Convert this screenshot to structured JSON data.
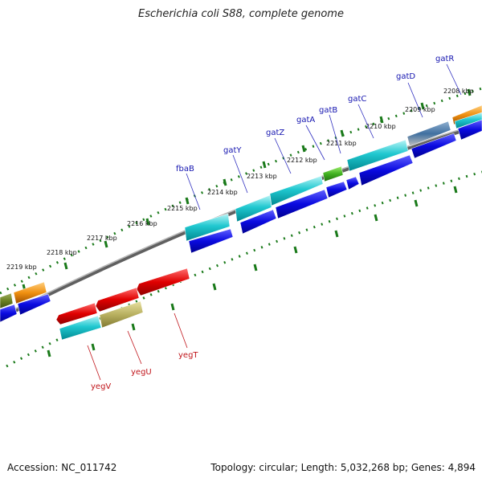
{
  "title": "Escherichia coli S88, complete genome",
  "footer": {
    "accession": "Accession: NC_011742",
    "summary": "Topology: circular; Length: 5,032,268 bp; Genes: 4,894"
  },
  "kbp_labels": [
    "2208 kbp",
    "2209 kbp",
    "2210 kbp",
    "2211 kbp",
    "2212 kbp",
    "2213 kbp",
    "2214 kbp",
    "2215 kbp",
    "2216 kbp",
    "2217 kbp",
    "2218 kbp",
    "2219 kbp"
  ],
  "genes_top": [
    "gatR",
    "gatD",
    "gatC",
    "gatB",
    "gatA",
    "gatZ",
    "gatY",
    "fbaB"
  ],
  "genes_bottom": [
    "yegT",
    "yegU",
    "yegV"
  ],
  "colors": {
    "cyan": "#00c0c8",
    "blue": "#0a0ae0",
    "red": "#e00000",
    "olive": "#b8b060",
    "green": "#40b020",
    "orange": "#f09010",
    "steel": "#4070a0",
    "backbone": "#808080",
    "tick": "#1a7a1a"
  }
}
